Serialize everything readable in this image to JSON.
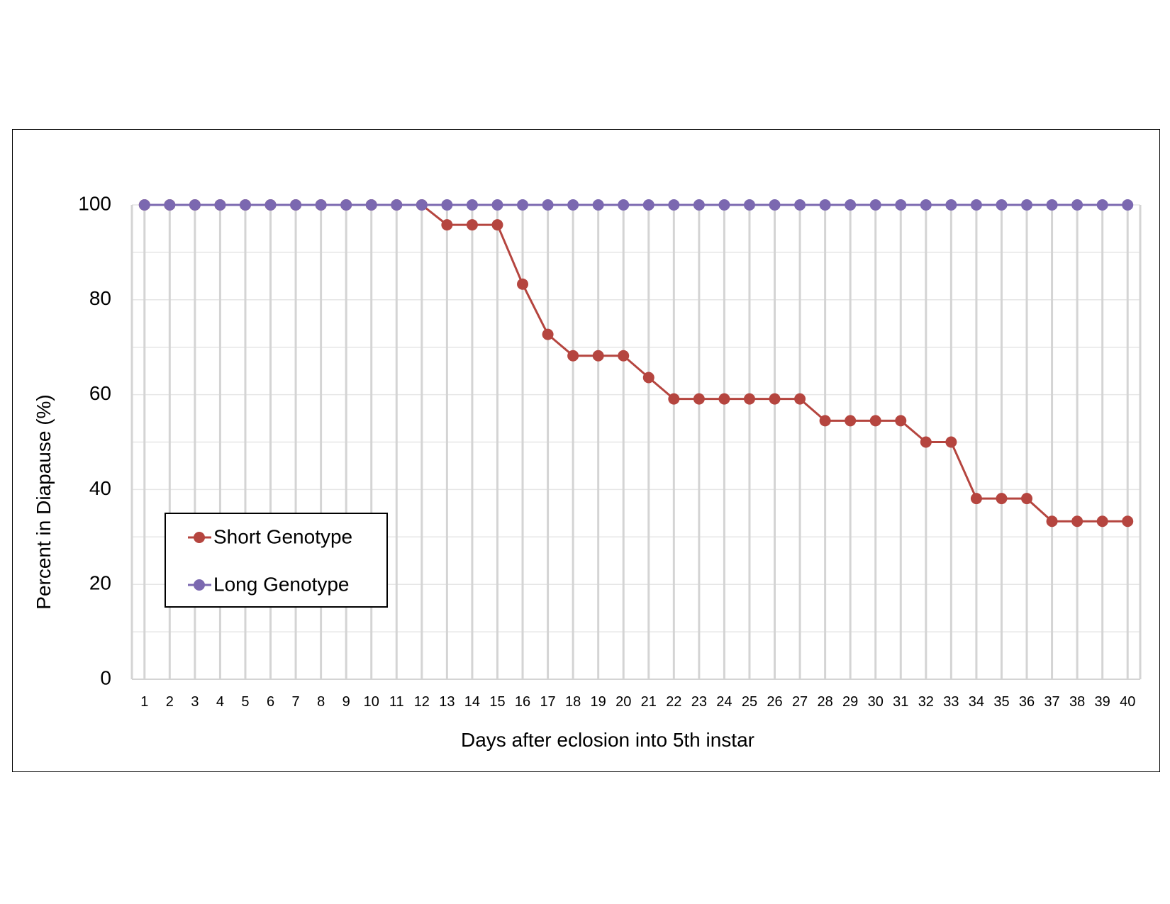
{
  "chart_data": {
    "type": "line",
    "xlabel": "Days after eclosion into 5th instar",
    "ylabel": "Percent in Diapause (%)",
    "ylim": [
      0,
      100
    ],
    "yticks": [
      "0",
      "20",
      "40",
      "60",
      "80",
      "100"
    ],
    "x": [
      "1",
      "2",
      "3",
      "4",
      "5",
      "6",
      "7",
      "8",
      "9",
      "10",
      "11",
      "12",
      "13",
      "14",
      "15",
      "16",
      "17",
      "18",
      "19",
      "20",
      "21",
      "22",
      "23",
      "24",
      "25",
      "26",
      "27",
      "28",
      "29",
      "30",
      "31",
      "32",
      "33",
      "34",
      "35",
      "36",
      "37",
      "38",
      "39",
      "40"
    ],
    "grid": "vertical and horizontal",
    "legend_position": "bottom-left",
    "series": [
      {
        "name": "Short Genotype",
        "color": "#b5453f",
        "values": [
          100,
          100,
          100,
          100,
          100,
          100,
          100,
          100,
          100,
          100,
          100,
          100,
          95.8,
          95.8,
          95.8,
          83.3,
          72.7,
          68.2,
          68.2,
          68.2,
          63.6,
          59.1,
          59.1,
          59.1,
          59.1,
          59.1,
          59.1,
          54.5,
          54.5,
          54.5,
          54.5,
          50,
          50,
          38.1,
          38.1,
          38.1,
          33.3,
          33.3,
          33.3,
          33.3
        ]
      },
      {
        "name": "Long Genotype",
        "color": "#7b68b0",
        "values": [
          100,
          100,
          100,
          100,
          100,
          100,
          100,
          100,
          100,
          100,
          100,
          100,
          100,
          100,
          100,
          100,
          100,
          100,
          100,
          100,
          100,
          100,
          100,
          100,
          100,
          100,
          100,
          100,
          100,
          100,
          100,
          100,
          100,
          100,
          100,
          100,
          100,
          100,
          100,
          100
        ]
      }
    ]
  }
}
